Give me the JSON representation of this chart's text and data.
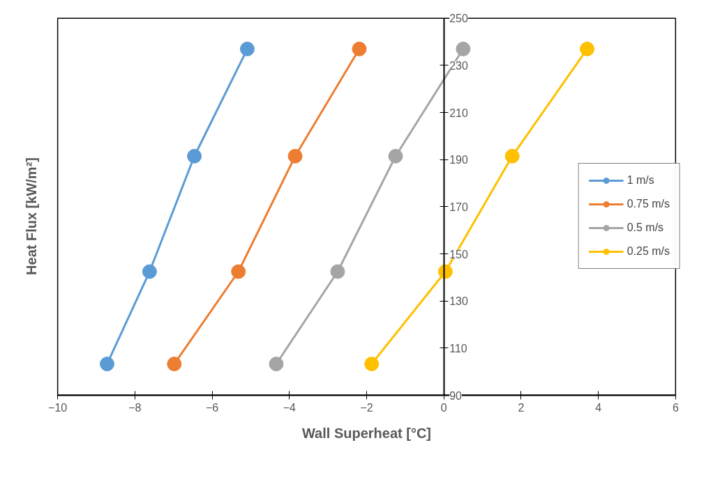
{
  "chart_data": {
    "type": "line",
    "xlabel": "Wall Superheat [°C]",
    "ylabel": "Heat Flux [kW/m²]",
    "xlim": [
      -10,
      6
    ],
    "xticks": [
      -10,
      -8,
      -6,
      -4,
      -2,
      0,
      2,
      4,
      6
    ],
    "ylim": [
      90,
      250
    ],
    "yticks": [
      90,
      110,
      130,
      150,
      170,
      190,
      210,
      230,
      250
    ],
    "grid": false,
    "legend": "right",
    "marker": "circle",
    "line_style": "solid",
    "series": [
      {
        "name": "1 m/s",
        "color": "#5b9bd5",
        "x": [
          -8.72,
          -7.62,
          -6.46,
          -5.09
        ],
        "values": [
          103.3,
          142.5,
          191.5,
          237
        ]
      },
      {
        "name": "0.75 m/s",
        "color": "#ed7d31",
        "x": [
          -6.98,
          -5.32,
          -3.85,
          -2.19
        ],
        "values": [
          103.3,
          142.5,
          191.5,
          237
        ]
      },
      {
        "name": "0.5 m/s",
        "color": "#a5a5a5",
        "x": [
          -4.34,
          -2.75,
          -1.25,
          0.5
        ],
        "values": [
          103.3,
          142.5,
          191.5,
          237
        ]
      },
      {
        "name": "0.25 m/s",
        "color": "#ffc000",
        "x": [
          -1.87,
          0.04,
          1.77,
          3.71
        ],
        "values": [
          103.3,
          142.5,
          191.5,
          237
        ]
      }
    ]
  }
}
